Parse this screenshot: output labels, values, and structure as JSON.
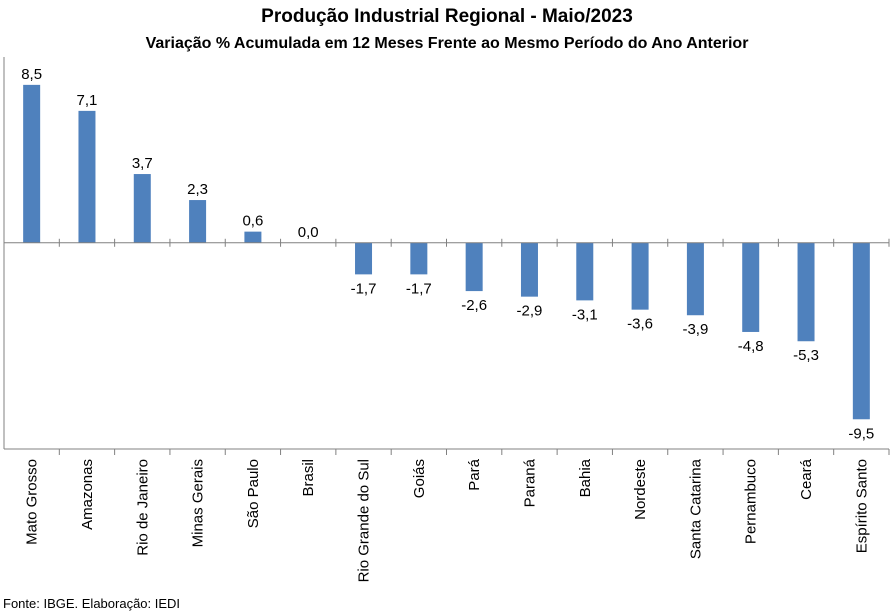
{
  "chart_data": {
    "type": "bar",
    "title": "Produção Industrial Regional - Maio/2023",
    "subtitle": "Variação % Acumulada em 12 Meses Frente ao Mesmo Período do Ano Anterior",
    "categories": [
      "Mato Grosso",
      "Amazonas",
      "Rio de Janeiro",
      "Minas Gerais",
      "São Paulo",
      "Brasil",
      "Rio Grande do Sul",
      "Goiás",
      "Pará",
      "Paraná",
      "Bahia",
      "Nordeste",
      "Santa Catarina",
      "Pernambuco",
      "Ceará",
      "Espírito Santo"
    ],
    "values": [
      8.5,
      7.1,
      3.7,
      2.3,
      0.6,
      0.0,
      -1.7,
      -1.7,
      -2.6,
      -2.9,
      -3.1,
      -3.6,
      -3.9,
      -4.8,
      -5.3,
      -9.5
    ],
    "value_labels": [
      "8,5",
      "7,1",
      "3,7",
      "2,3",
      "0,6",
      "0,0",
      "-1,7",
      "-1,7",
      "-2,6",
      "-2,9",
      "-3,1",
      "-3,6",
      "-3,9",
      "-4,8",
      "-5,3",
      "-9,5"
    ],
    "xlabel": "",
    "ylabel": "",
    "ylim": [
      -11.1,
      10.0
    ],
    "grid": false,
    "legend": "none",
    "bar_color": "#4f81bd",
    "axis_color": "#808080"
  },
  "source": "Fonte: IBGE. Elaboração: IEDI"
}
